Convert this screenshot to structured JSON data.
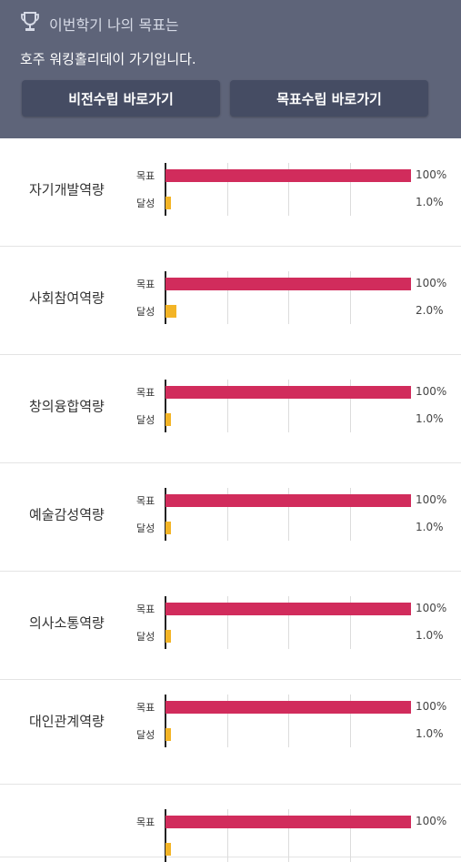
{
  "header": {
    "title": "이번학기 나의 목표는",
    "goal": "호주 워킹홀리데이 가기입니다.",
    "buttons": [
      {
        "label": "비전수립 바로가기"
      },
      {
        "label": "목표수립 바로가기"
      }
    ]
  },
  "competencies": [
    {
      "name": "자기개발역량",
      "goal_label": "목표",
      "ach_label": "달성",
      "goal_value": 100,
      "goal_text": "100%",
      "ach_value": 1.0,
      "ach_text": "1.0%"
    },
    {
      "name": "사회참여역량",
      "goal_label": "목표",
      "ach_label": "달성",
      "goal_value": 100,
      "goal_text": "100%",
      "ach_value": 2.0,
      "ach_text": "2.0%"
    },
    {
      "name": "창의융합역량",
      "goal_label": "목표",
      "ach_label": "달성",
      "goal_value": 100,
      "goal_text": "100%",
      "ach_value": 1.0,
      "ach_text": "1.0%"
    },
    {
      "name": "예술감성역량",
      "goal_label": "목표",
      "ach_label": "달성",
      "goal_value": 100,
      "goal_text": "100%",
      "ach_value": 1.0,
      "ach_text": "1.0%"
    },
    {
      "name": "의사소통역량",
      "goal_label": "목표",
      "ach_label": "달성",
      "goal_value": 100,
      "goal_text": "100%",
      "ach_value": 1.0,
      "ach_text": "1.0%"
    },
    {
      "name": "대인관계역량",
      "goal_label": "목표",
      "ach_label": "달성",
      "goal_value": 100,
      "goal_text": "100%",
      "ach_value": 1.0,
      "ach_text": "1.0%"
    },
    {
      "name": "",
      "goal_label": "목표",
      "ach_label": "",
      "goal_value": 100,
      "goal_text": "100%",
      "ach_value": 1.0,
      "ach_text": ""
    }
  ],
  "colors": {
    "goal_bar": "#d12c5c",
    "ach_bar": "#f3b426",
    "header_bg": "#5e6479",
    "button_bg": "#454c63"
  }
}
